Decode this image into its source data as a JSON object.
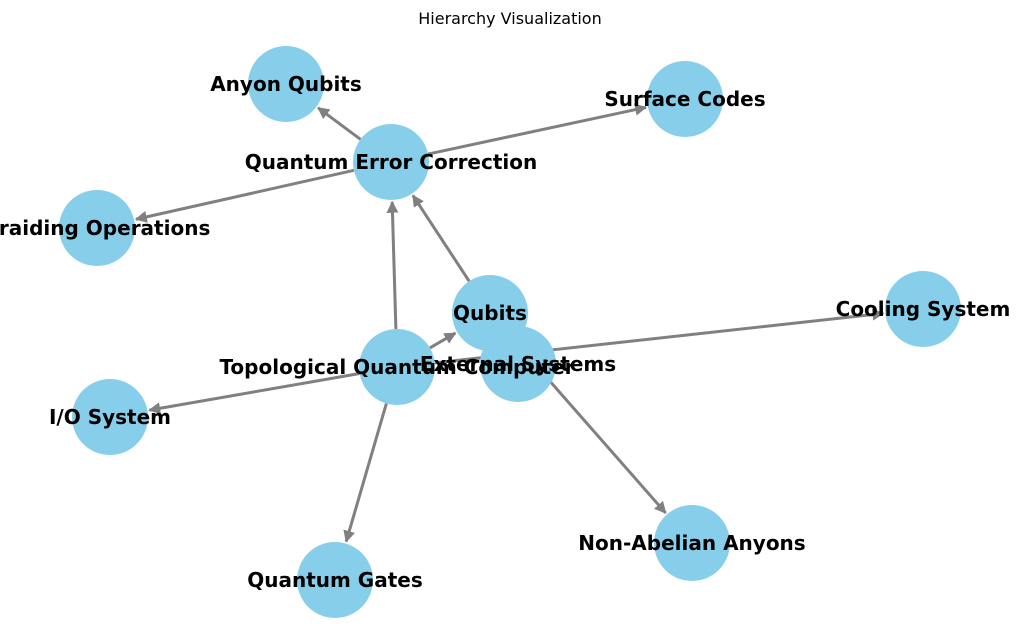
{
  "title": "Hierarchy Visualization",
  "colors": {
    "node_fill": "#87CEEB",
    "edge": "#808080",
    "label": "#000000"
  },
  "nodes": [
    {
      "id": "tqc",
      "label": "Topological Quantum Computer"
    },
    {
      "id": "qubits",
      "label": "Qubits"
    },
    {
      "id": "qec",
      "label": "Quantum Error Correction"
    },
    {
      "id": "anyon_qubits",
      "label": "Anyon Qubits"
    },
    {
      "id": "surface_codes",
      "label": "Surface Codes"
    },
    {
      "id": "braiding",
      "label": "Braiding Operations"
    },
    {
      "id": "cooling",
      "label": "Cooling System"
    },
    {
      "id": "io",
      "label": "I/O System"
    },
    {
      "id": "external",
      "label": "External Systems"
    },
    {
      "id": "non_abelian",
      "label": "Non-Abelian Anyons"
    },
    {
      "id": "gates",
      "label": "Quantum Gates"
    }
  ],
  "edges": [
    {
      "from": "tqc",
      "to": "qubits"
    },
    {
      "from": "tqc",
      "to": "qec"
    },
    {
      "from": "tqc",
      "to": "gates"
    },
    {
      "from": "tqc",
      "to": "io"
    },
    {
      "from": "tqc",
      "to": "cooling"
    },
    {
      "from": "qubits",
      "to": "qec"
    },
    {
      "from": "qubits",
      "to": "non_abelian"
    },
    {
      "from": "qec",
      "to": "anyon_qubits"
    },
    {
      "from": "qec",
      "to": "surface_codes"
    },
    {
      "from": "qec",
      "to": "braiding"
    }
  ]
}
